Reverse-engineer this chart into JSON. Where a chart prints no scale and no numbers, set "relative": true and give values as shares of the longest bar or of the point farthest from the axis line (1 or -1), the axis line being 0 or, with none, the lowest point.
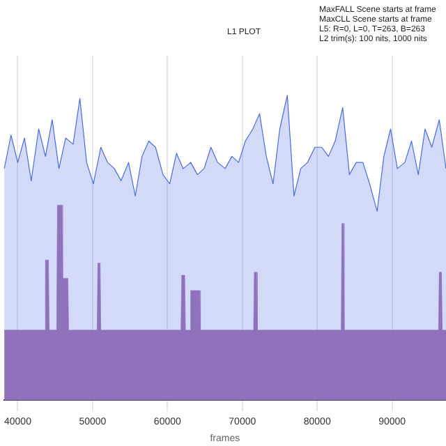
{
  "chart_data": {
    "type": "area",
    "title": "L1 PLOT",
    "xlabel": "frames",
    "relative": true,
    "grid": "x",
    "legend": false,
    "annotations": [
      "MaxFALL Scene starts at frame",
      "MaxCLL Scene starts at frame",
      "L5: R=0, L=0, T=263, B=263",
      "L2 trim(s): 100 nits, 1000 nits"
    ],
    "xlim": [
      38150,
      97200
    ],
    "xticks": [
      40000,
      50000,
      60000,
      70000,
      80000,
      90000
    ],
    "series": [
      {
        "color": "#4a6ae0",
        "x": [
          38200,
          39100,
          40000,
          40900,
          41800,
          42800,
          43700,
          44600,
          45500,
          46400,
          47400,
          48300,
          49200,
          50100,
          51100,
          52000,
          52900,
          53800,
          54800,
          55700,
          56600,
          57500,
          58400,
          59400,
          60300,
          61200,
          62100,
          63100,
          64000,
          64900,
          65800,
          66700,
          67700,
          68600,
          69500,
          70400,
          71400,
          72300,
          73200,
          74100,
          75000,
          76000,
          76900,
          77800,
          78700,
          79700,
          80600,
          81500,
          82400,
          83400,
          84300,
          85200,
          86100,
          87000,
          88000,
          88900,
          89800,
          90700,
          91700,
          92600,
          93500,
          94400,
          95300,
          96300,
          97200
        ],
        "values": [
          0.76,
          0.87,
          0.78,
          0.86,
          0.72,
          0.89,
          0.8,
          0.92,
          0.76,
          0.86,
          0.84,
          0.99,
          0.78,
          0.71,
          0.83,
          0.78,
          0.76,
          0.72,
          0.78,
          0.67,
          0.8,
          0.85,
          0.83,
          0.74,
          0.71,
          0.81,
          0.76,
          0.78,
          0.74,
          0.76,
          0.83,
          0.78,
          0.76,
          0.8,
          0.78,
          0.85,
          0.89,
          0.94,
          0.8,
          0.71,
          0.89,
          1,
          0.67,
          0.76,
          0.78,
          0.83,
          0.83,
          0.8,
          0.85,
          0.96,
          0.74,
          0.78,
          0.78,
          0.71,
          0.62,
          0.8,
          0.89,
          0.76,
          0.78,
          0.85,
          0.74,
          0.89,
          0.83,
          0.92,
          0.76
        ]
      },
      {
        "color": "#8c6bb8",
        "x": [
          38200,
          43600,
          43700,
          44100,
          44200,
          45200,
          45300,
          45900,
          46000,
          46700,
          46800,
          50600,
          50700,
          51000,
          51100,
          61800,
          61900,
          62300,
          62400,
          63000,
          63100,
          64300,
          64400,
          71500,
          71600,
          71900,
          72000,
          83200,
          83300,
          83500,
          83600,
          96200,
          96300,
          96600,
          96700,
          97200
        ],
        "values": [
          0.23,
          0.23,
          0.46,
          0.46,
          0.23,
          0.23,
          0.64,
          0.64,
          0.4,
          0.4,
          0.23,
          0.23,
          0.45,
          0.45,
          0.23,
          0.23,
          0.41,
          0.41,
          0.23,
          0.23,
          0.36,
          0.36,
          0.23,
          0.23,
          0.42,
          0.42,
          0.23,
          0.23,
          0.58,
          0.58,
          0.23,
          0.23,
          0.42,
          0.42,
          0.23,
          0.23
        ]
      }
    ]
  }
}
